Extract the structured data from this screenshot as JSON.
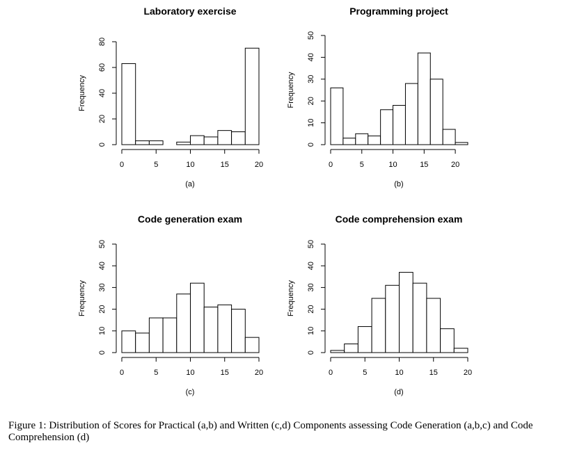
{
  "chart_data": [
    {
      "type": "bar",
      "title": "Laboratory exercise",
      "ylabel": "Frequency",
      "subcaption": "(a)",
      "bin_edges": [
        0,
        2,
        4,
        6,
        8,
        10,
        12,
        14,
        16,
        18,
        20
      ],
      "values": [
        63,
        3,
        3,
        0,
        2,
        7,
        6,
        11,
        10,
        75
      ],
      "xlim": [
        0,
        20
      ],
      "ylim": [
        0,
        80
      ],
      "xticks": [
        0,
        5,
        10,
        15,
        20
      ],
      "yticks": [
        0,
        20,
        40,
        60,
        80
      ]
    },
    {
      "type": "bar",
      "title": "Programming project",
      "ylabel": "Frequency",
      "subcaption": "(b)",
      "bin_edges": [
        0,
        2,
        4,
        6,
        8,
        10,
        12,
        14,
        16,
        18,
        20,
        22
      ],
      "values": [
        26,
        3,
        5,
        4,
        16,
        18,
        28,
        42,
        30,
        7,
        1
      ],
      "xlim": [
        0,
        22
      ],
      "ylim": [
        0,
        50
      ],
      "xticks": [
        0,
        5,
        10,
        15,
        20
      ],
      "yticks": [
        0,
        10,
        20,
        30,
        40,
        50
      ]
    },
    {
      "type": "bar",
      "title": "Code generation exam",
      "ylabel": "Frequency",
      "subcaption": "(c)",
      "bin_edges": [
        0,
        2,
        4,
        6,
        8,
        10,
        12,
        14,
        16,
        18,
        20
      ],
      "values": [
        10,
        9,
        16,
        16,
        27,
        32,
        21,
        22,
        20,
        7
      ],
      "xlim": [
        0,
        20
      ],
      "ylim": [
        0,
        50
      ],
      "xticks": [
        0,
        5,
        10,
        15,
        20
      ],
      "yticks": [
        0,
        10,
        20,
        30,
        40,
        50
      ]
    },
    {
      "type": "bar",
      "title": "Code comprehension exam",
      "ylabel": "Frequency",
      "subcaption": "(d)",
      "bin_edges": [
        0,
        2,
        4,
        6,
        8,
        10,
        12,
        14,
        16,
        18,
        20
      ],
      "values": [
        1,
        4,
        12,
        25,
        31,
        37,
        32,
        25,
        11,
        2
      ],
      "xlim": [
        0,
        20
      ],
      "ylim": [
        0,
        50
      ],
      "xticks": [
        0,
        5,
        10,
        15,
        20
      ],
      "yticks": [
        0,
        10,
        20,
        30,
        40,
        50
      ]
    }
  ],
  "caption": "Figure 1: Distribution of Scores for Practical (a,b) and Written (c,d) Components assessing Code Generation (a,b,c) and Code Comprehension (d)"
}
